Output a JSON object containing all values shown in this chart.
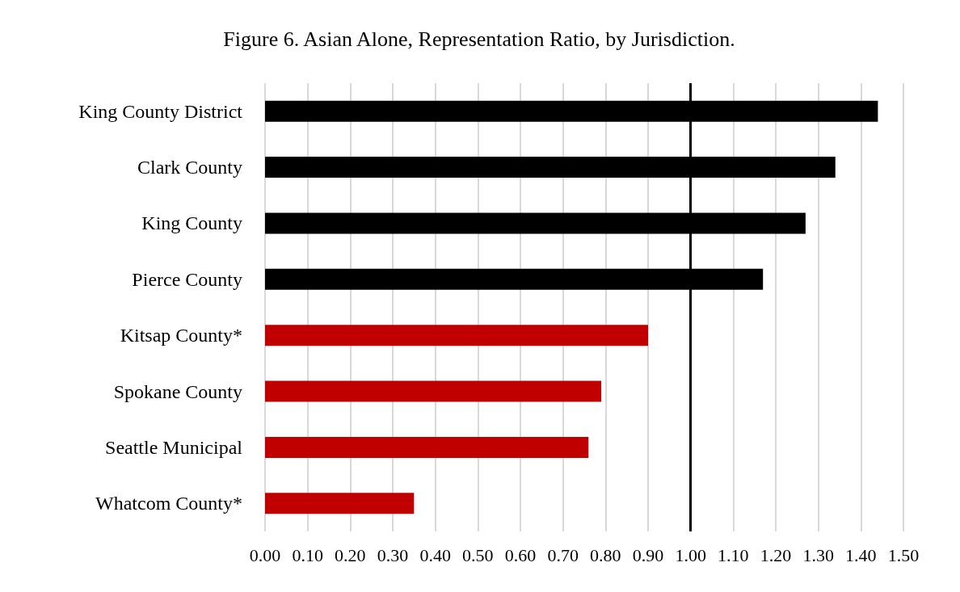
{
  "chart_data": {
    "type": "bar",
    "orientation": "horizontal",
    "title": "Figure 6. Asian Alone, Representation Ratio, by Jurisdiction.",
    "categories": [
      "King County District",
      "Clark County",
      "King County",
      "Pierce County",
      "Kitsap County*",
      "Spokane County",
      "Seattle Municipal",
      "Whatcom County*"
    ],
    "values": [
      1.44,
      1.34,
      1.27,
      1.17,
      0.9,
      0.79,
      0.76,
      0.35
    ],
    "colors": [
      "#000000",
      "#000000",
      "#000000",
      "#000000",
      "#c00000",
      "#c00000",
      "#c00000",
      "#c00000"
    ],
    "xlim": [
      0,
      1.5
    ],
    "xticks": [
      {
        "value": 0,
        "label": "0.00"
      },
      {
        "value": 0.1,
        "label": "0.10"
      },
      {
        "value": 0.2,
        "label": "0.20"
      },
      {
        "value": 0.3,
        "label": "0.30"
      },
      {
        "value": 0.4,
        "label": "0.40"
      },
      {
        "value": 0.5,
        "label": "0.50"
      },
      {
        "value": 0.6,
        "label": "0.60"
      },
      {
        "value": 0.7,
        "label": "0.70"
      },
      {
        "value": 0.8,
        "label": "0.80"
      },
      {
        "value": 0.9,
        "label": "0.90"
      },
      {
        "value": 1,
        "label": "1.00"
      },
      {
        "value": 1.1,
        "label": "1.10"
      },
      {
        "value": 1.2,
        "label": "1.20"
      },
      {
        "value": 1.3,
        "label": "1.30"
      },
      {
        "value": 1.4,
        "label": "1.40"
      },
      {
        "value": 1.5,
        "label": "1.50"
      }
    ],
    "ref_lines": [
      {
        "axis": "x",
        "value": 1,
        "color": "#000000"
      }
    ],
    "grid": "x"
  }
}
